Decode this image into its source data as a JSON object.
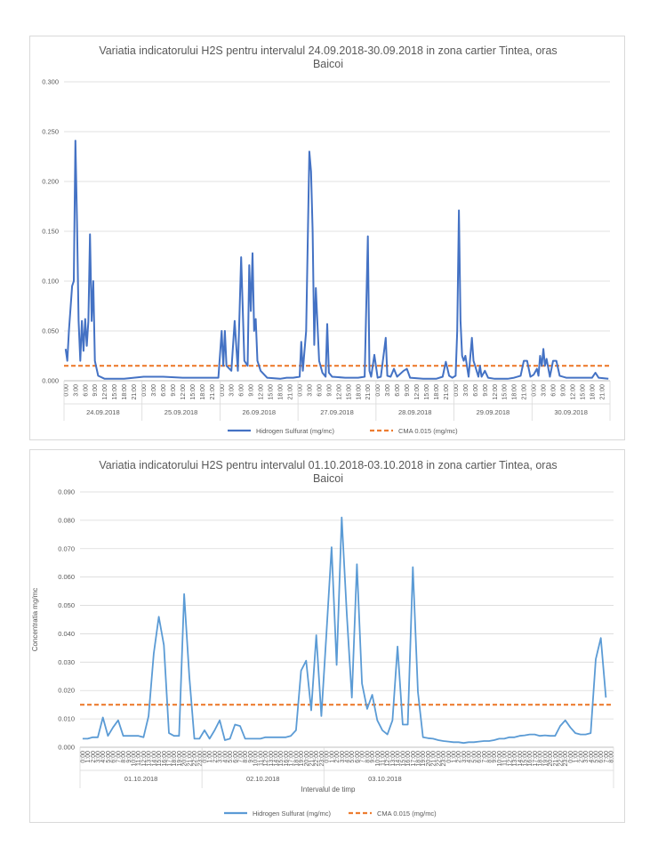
{
  "chart_data": [
    {
      "type": "line",
      "title_lines": [
        "Variatia indicatorului H2S pentru intervalul 24.09.2018-30.09.2018 in zona cartier Tintea, oras",
        "Baicoi"
      ],
      "ylim": [
        0,
        0.3
      ],
      "y_ticks": [
        "0.000",
        "0.050",
        "0.100",
        "0.150",
        "0.200",
        "0.250",
        "0.300"
      ],
      "hour_labels": [
        "0:00",
        "3:00",
        "6:00",
        "9:00",
        "12:00",
        "15:00",
        "18:00",
        "21:00"
      ],
      "days": [
        "24.09.2018",
        "25.09.2018",
        "26.09.2018",
        "27.09.2018",
        "28.09.2018",
        "29.09.2018",
        "30.09.2018"
      ],
      "series": [
        {
          "name": "Hidrogen Sulfurat (mg/mc)",
          "color": "#4472c4",
          "points": [
            [
              0,
              0.032
            ],
            [
              0.5,
              0.02
            ],
            [
              1,
              0.05
            ],
            [
              2,
              0.095
            ],
            [
              2.5,
              0.1
            ],
            [
              3,
              0.241
            ],
            [
              3.5,
              0.16
            ],
            [
              4,
              0.06
            ],
            [
              4.5,
              0.02
            ],
            [
              5,
              0.06
            ],
            [
              5.5,
              0.03
            ],
            [
              6,
              0.062
            ],
            [
              6.5,
              0.035
            ],
            [
              7,
              0.06
            ],
            [
              7.5,
              0.147
            ],
            [
              8,
              0.06
            ],
            [
              8.5,
              0.1
            ],
            [
              9,
              0.02
            ],
            [
              10,
              0.005
            ],
            [
              12,
              0.002
            ],
            [
              15,
              0.002
            ],
            [
              18,
              0.002
            ],
            [
              21,
              0.003
            ],
            [
              24,
              0.004
            ],
            [
              30,
              0.004
            ],
            [
              36,
              0.003
            ],
            [
              40,
              0.003
            ],
            [
              44,
              0.003
            ],
            [
              47,
              0.003
            ],
            [
              48,
              0.05
            ],
            [
              48.5,
              0.015
            ],
            [
              49,
              0.05
            ],
            [
              49.5,
              0.015
            ],
            [
              51,
              0.01
            ],
            [
              52,
              0.06
            ],
            [
              53,
              0.01
            ],
            [
              54,
              0.124
            ],
            [
              55,
              0.02
            ],
            [
              56,
              0.015
            ],
            [
              56.5,
              0.116
            ],
            [
              57,
              0.07
            ],
            [
              57.5,
              0.128
            ],
            [
              58,
              0.05
            ],
            [
              58.5,
              0.062
            ],
            [
              59,
              0.02
            ],
            [
              60,
              0.01
            ],
            [
              62,
              0.003
            ],
            [
              66,
              0.002
            ],
            [
              68,
              0.003
            ],
            [
              70,
              0.003
            ],
            [
              72,
              0.004
            ],
            [
              72.5,
              0.039
            ],
            [
              73,
              0.01
            ],
            [
              74,
              0.05
            ],
            [
              75,
              0.23
            ],
            [
              75.5,
              0.21
            ],
            [
              76,
              0.15
            ],
            [
              76.5,
              0.036
            ],
            [
              77,
              0.093
            ],
            [
              78,
              0.02
            ],
            [
              79,
              0.008
            ],
            [
              80,
              0.004
            ],
            [
              80.5,
              0.057
            ],
            [
              81,
              0.008
            ],
            [
              82,
              0.004
            ],
            [
              86,
              0.003
            ],
            [
              90,
              0.003
            ],
            [
              92,
              0.004
            ],
            [
              93,
              0.145
            ],
            [
              93.5,
              0.01
            ],
            [
              94,
              0.004
            ],
            [
              95,
              0.026
            ],
            [
              96,
              0.003
            ],
            [
              97,
              0.004
            ],
            [
              98,
              0.03
            ],
            [
              98.5,
              0.043
            ],
            [
              99,
              0.005
            ],
            [
              100,
              0.004
            ],
            [
              101,
              0.012
            ],
            [
              102,
              0.004
            ],
            [
              104,
              0.01
            ],
            [
              105,
              0.012
            ],
            [
              106,
              0.003
            ],
            [
              110,
              0.002
            ],
            [
              114,
              0.002
            ],
            [
              116,
              0.004
            ],
            [
              117,
              0.019
            ],
            [
              118,
              0.005
            ],
            [
              119,
              0.003
            ],
            [
              120,
              0.005
            ],
            [
              120.5,
              0.05
            ],
            [
              121,
              0.171
            ],
            [
              121.5,
              0.06
            ],
            [
              122,
              0.025
            ],
            [
              122.5,
              0.02
            ],
            [
              123,
              0.025
            ],
            [
              124,
              0.004
            ],
            [
              125,
              0.043
            ],
            [
              125.5,
              0.02
            ],
            [
              126,
              0.015
            ],
            [
              127,
              0.004
            ],
            [
              127.5,
              0.015
            ],
            [
              128,
              0.004
            ],
            [
              129,
              0.01
            ],
            [
              130,
              0.003
            ],
            [
              132,
              0.002
            ],
            [
              136,
              0.002
            ],
            [
              138,
              0.003
            ],
            [
              140,
              0.005
            ],
            [
              141,
              0.02
            ],
            [
              142,
              0.02
            ],
            [
              143,
              0.004
            ],
            [
              144,
              0.006
            ],
            [
              145,
              0.012
            ],
            [
              145.5,
              0.005
            ],
            [
              146,
              0.025
            ],
            [
              146.5,
              0.015
            ],
            [
              147,
              0.032
            ],
            [
              147.5,
              0.015
            ],
            [
              148,
              0.022
            ],
            [
              149,
              0.004
            ],
            [
              150,
              0.02
            ],
            [
              151,
              0.02
            ],
            [
              152,
              0.005
            ],
            [
              154,
              0.003
            ],
            [
              158,
              0.003
            ],
            [
              162,
              0.003
            ],
            [
              163,
              0.008
            ],
            [
              164,
              0.003
            ],
            [
              167,
              0.002
            ]
          ]
        },
        {
          "name": "CMA 0.015 (mg/mc)",
          "color": "#ed7d31",
          "value": 0.015
        }
      ]
    },
    {
      "type": "line",
      "title_lines": [
        "Variatia indicatorului H2S pentru intervalul 01.10.2018-03.10.2018 in zona cartier Tintea, oras",
        "Baicoi"
      ],
      "ylabel": "Concentratia mg/mc",
      "xlabel": "Intervalul de timp",
      "ylim": [
        0,
        0.09
      ],
      "y_ticks": [
        "0.000",
        "0.010",
        "0.020",
        "0.030",
        "0.040",
        "0.050",
        "0.060",
        "0.070",
        "0.080",
        "0.090"
      ],
      "hour_labels": [
        "0:00",
        "1:00",
        "2:00",
        "3:00",
        "4:00",
        "5:00",
        "6:00",
        "7:00",
        "8:00",
        "9:00",
        "10:00",
        "11:00",
        "12:00",
        "13:00",
        "14:00",
        "15:00",
        "16:00",
        "17:00",
        "18:00",
        "19:00",
        "20:00",
        "21:00",
        "22:00",
        "23:00"
      ],
      "days": [
        "01.10.2018",
        "02.10.2018",
        "03.10.2018"
      ],
      "series": [
        {
          "name": "Hidrogen Sulfurat (mg/mc)",
          "color": "#5b9bd5",
          "values": [
            0.003,
            0.003,
            0.0035,
            0.0035,
            0.0105,
            0.004,
            0.007,
            0.0095,
            0.004,
            0.004,
            0.004,
            0.004,
            0.0035,
            0.011,
            0.033,
            0.046,
            0.036,
            0.005,
            0.004,
            0.004,
            0.054,
            0.025,
            0.003,
            0.003,
            0.006,
            0.003,
            0.006,
            0.0095,
            0.0025,
            0.003,
            0.008,
            0.0075,
            0.003,
            0.003,
            0.003,
            0.003,
            0.0035,
            0.0035,
            0.0035,
            0.0035,
            0.0035,
            0.004,
            0.006,
            0.027,
            0.0305,
            0.013,
            0.0395,
            0.011,
            0.04,
            0.0705,
            0.029,
            0.081,
            0.047,
            0.0175,
            0.0645,
            0.0225,
            0.0135,
            0.0185,
            0.0095,
            0.006,
            0.0045,
            0.0095,
            0.0355,
            0.008,
            0.008,
            0.0635,
            0.0195,
            0.0035,
            0.0032,
            0.003,
            0.0025,
            0.0022,
            0.002,
            0.0018,
            0.0018,
            0.0015,
            0.0018,
            0.0018,
            0.002,
            0.0022,
            0.0022,
            0.0025,
            0.003,
            0.003,
            0.0035,
            0.0035,
            0.004,
            0.0042,
            0.0045,
            0.0045,
            0.004,
            0.0042,
            0.004,
            0.004,
            0.0075,
            0.0095,
            0.007,
            0.005,
            0.0045,
            0.0045,
            0.005,
            0.031,
            0.0385,
            0.0175
          ]
        },
        {
          "name": "CMA 0.015 (mg/mc)",
          "color": "#ed7d31",
          "value": 0.015
        }
      ]
    }
  ]
}
